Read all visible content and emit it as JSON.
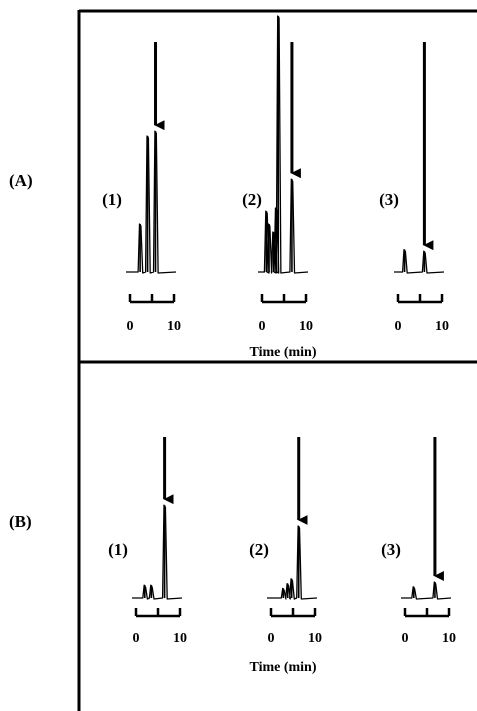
{
  "chart_data": [
    {
      "type": "line",
      "panel_label": "(A)",
      "xlabel": "Time (min)",
      "ylabel": "",
      "grid": false,
      "x_ticks": [
        0,
        5,
        10
      ],
      "x_tick_labels": [
        "0",
        "10"
      ],
      "xlim": [
        0,
        10
      ],
      "subplots": [
        {
          "label": "(1)",
          "arrow_at_x": 5.8,
          "peaks": [
            {
              "x": 2.3,
              "height": 0.3
            },
            {
              "x": 4.0,
              "height": 0.85
            },
            {
              "x": 5.8,
              "height": 0.88
            }
          ]
        },
        {
          "label": "(2)",
          "arrow_at_x": 6.8,
          "peaks": [
            {
              "x": 1.0,
              "height": 0.38
            },
            {
              "x": 1.6,
              "height": 0.3
            },
            {
              "x": 2.6,
              "height": 0.25
            },
            {
              "x": 3.2,
              "height": 0.4
            },
            {
              "x": 3.7,
              "height": 1.6
            },
            {
              "x": 6.8,
              "height": 0.58
            }
          ]
        },
        {
          "label": "(3)",
          "arrow_at_x": 6.0,
          "peaks": [
            {
              "x": 1.5,
              "height": 0.14
            },
            {
              "x": 6.0,
              "height": 0.13
            }
          ]
        }
      ]
    },
    {
      "type": "line",
      "panel_label": "(B)",
      "xlabel": "Time (min)",
      "ylabel": "",
      "grid": false,
      "x_ticks": [
        0,
        5,
        10
      ],
      "x_tick_labels": [
        "0",
        "10"
      ],
      "xlim": [
        0,
        10
      ],
      "subplots": [
        {
          "label": "(1)",
          "arrow_at_x": 6.5,
          "peaks": [
            {
              "x": 2.0,
              "height": 0.08
            },
            {
              "x": 3.5,
              "height": 0.08
            },
            {
              "x": 6.5,
              "height": 0.58
            }
          ]
        },
        {
          "label": "(2)",
          "arrow_at_x": 6.3,
          "peaks": [
            {
              "x": 2.8,
              "height": 0.06
            },
            {
              "x": 3.8,
              "height": 0.09
            },
            {
              "x": 4.7,
              "height": 0.12
            },
            {
              "x": 6.3,
              "height": 0.45
            }
          ]
        },
        {
          "label": "(3)",
          "arrow_at_x": 6.8,
          "peaks": [
            {
              "x": 2.0,
              "height": 0.07
            },
            {
              "x": 6.8,
              "height": 0.1
            }
          ]
        }
      ]
    }
  ]
}
